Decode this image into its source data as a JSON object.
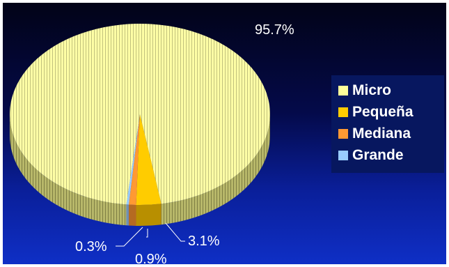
{
  "chart_data": {
    "type": "pie",
    "categories": [
      "Micro",
      "Pequeña",
      "Mediana",
      "Grande"
    ],
    "values": [
      95.7,
      3.1,
      0.9,
      0.3
    ],
    "data_labels": [
      "95.7%",
      "3.1%",
      "0.9%",
      "0.3%"
    ],
    "colors": [
      "#ffff99",
      "#ffcc00",
      "#ff9933",
      "#99ccff"
    ],
    "legend": "right",
    "style": "3d"
  }
}
